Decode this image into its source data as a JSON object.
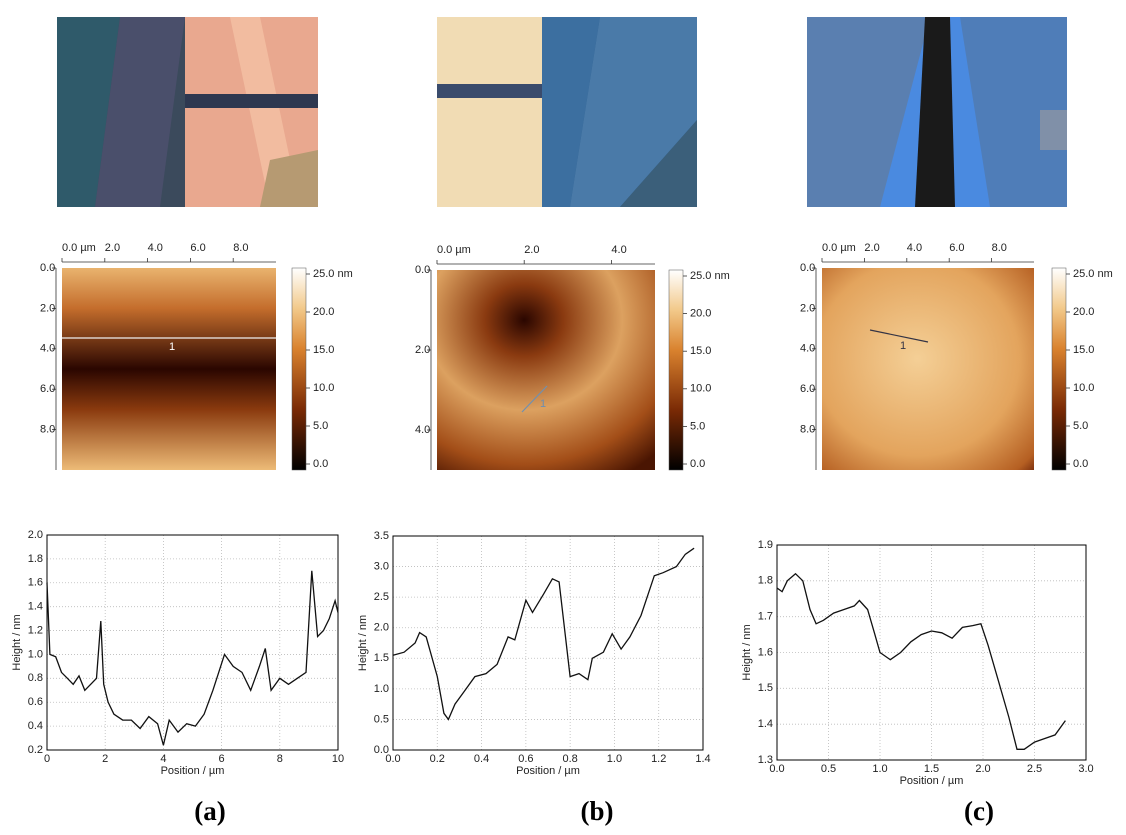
{
  "chart_data": [
    {
      "type": "line",
      "x_label": "Position / µm",
      "y_label": "Height / nm",
      "grid": true,
      "color": "#111",
      "x": [
        0,
        0.1,
        0.3,
        0.5,
        0.7,
        0.9,
        1.1,
        1.3,
        1.5,
        1.7,
        1.85,
        1.95,
        2.1,
        2.3,
        2.6,
        2.9,
        3.2,
        3.5,
        3.8,
        4.0,
        4.2,
        4.5,
        4.8,
        5.1,
        5.4,
        5.7,
        5.9,
        6.1,
        6.4,
        6.7,
        7.0,
        7.3,
        7.5,
        7.7,
        8.0,
        8.3,
        8.6,
        8.9,
        9.1,
        9.3,
        9.5,
        9.7,
        9.9,
        10
      ],
      "values": [
        1.6,
        1.0,
        0.98,
        0.85,
        0.8,
        0.75,
        0.82,
        0.7,
        0.75,
        0.8,
        1.28,
        0.75,
        0.6,
        0.5,
        0.45,
        0.45,
        0.38,
        0.48,
        0.42,
        0.24,
        0.45,
        0.35,
        0.42,
        0.4,
        0.5,
        0.7,
        0.85,
        1.0,
        0.9,
        0.85,
        0.7,
        0.9,
        1.05,
        0.7,
        0.8,
        0.75,
        0.8,
        0.85,
        1.7,
        1.15,
        1.2,
        1.3,
        1.45,
        1.35
      ],
      "xlim": [
        0,
        10
      ],
      "xticks": [
        0,
        2,
        4,
        6,
        8,
        10
      ],
      "ylim": [
        0.2,
        2.0
      ],
      "yticks": [
        0.2,
        0.4,
        0.6,
        0.8,
        {
          "value": 1.0,
          "label": "1.0"
        },
        1.2,
        1.4,
        1.6,
        1.8,
        {
          "value": 2.0,
          "label": "2.0"
        }
      ]
    },
    {
      "type": "line",
      "x_label": "Position / µm",
      "y_label": "Height / nm",
      "grid": true,
      "color": "#111",
      "x": [
        0,
        0.05,
        0.1,
        0.12,
        0.15,
        0.2,
        0.23,
        0.25,
        0.28,
        0.32,
        0.37,
        0.42,
        0.47,
        0.52,
        0.55,
        0.6,
        0.63,
        0.68,
        0.72,
        0.75,
        0.8,
        0.84,
        0.88,
        0.9,
        0.95,
        0.99,
        1.03,
        1.07,
        1.12,
        1.18,
        1.22,
        1.28,
        1.32,
        1.36
      ],
      "values": [
        1.55,
        1.6,
        1.75,
        1.92,
        1.85,
        1.2,
        0.6,
        0.5,
        0.75,
        0.95,
        1.2,
        1.25,
        1.4,
        1.85,
        1.8,
        2.45,
        2.25,
        2.55,
        2.8,
        2.75,
        1.2,
        1.25,
        1.15,
        1.5,
        1.6,
        1.9,
        1.65,
        1.85,
        2.2,
        2.85,
        2.9,
        3.0,
        3.2,
        3.3
      ],
      "xlim": [
        0,
        1.4
      ],
      "xticks": [
        {
          "value": 0,
          "label": "0.0"
        },
        0.2,
        0.4,
        0.6,
        0.8,
        {
          "value": 1,
          "label": "1.0"
        },
        1.2,
        1.4
      ],
      "ylim": [
        0,
        3.5
      ],
      "yticks": [
        {
          "value": 0,
          "label": "0.0"
        },
        0.5,
        {
          "value": 1,
          "label": "1.0"
        },
        1.5,
        {
          "value": 2,
          "label": "2.0"
        },
        2.5,
        {
          "value": 3,
          "label": "3.0"
        },
        3.5
      ]
    },
    {
      "type": "line",
      "x_label": "Position / µm",
      "y_label": "Height / nm",
      "grid": true,
      "color": "#111",
      "x": [
        0,
        0.05,
        0.1,
        0.18,
        0.25,
        0.32,
        0.38,
        0.45,
        0.55,
        0.65,
        0.75,
        0.8,
        0.88,
        0.95,
        1.0,
        1.1,
        1.2,
        1.3,
        1.4,
        1.5,
        1.6,
        1.7,
        1.8,
        1.9,
        1.98,
        2.05,
        2.15,
        2.25,
        2.33,
        2.4,
        2.5,
        2.6,
        2.7,
        2.8
      ],
      "values": [
        1.78,
        1.77,
        1.8,
        1.82,
        1.8,
        1.72,
        1.68,
        1.69,
        1.71,
        1.72,
        1.73,
        1.745,
        1.72,
        1.65,
        1.6,
        1.58,
        1.6,
        1.63,
        1.65,
        1.66,
        1.655,
        1.64,
        1.67,
        1.675,
        1.68,
        1.62,
        1.52,
        1.42,
        1.33,
        1.33,
        1.35,
        1.36,
        1.37,
        1.41
      ],
      "xlim": [
        0,
        3
      ],
      "xticks": [
        {
          "value": 0,
          "label": "0.0"
        },
        0.5,
        {
          "value": 1,
          "label": "1.0"
        },
        1.5,
        {
          "value": 2,
          "label": "2.0"
        },
        2.5,
        {
          "value": 3,
          "label": "3.0"
        }
      ],
      "ylim": [
        1.3,
        1.9
      ],
      "yticks": [
        1.3,
        1.4,
        1.5,
        1.6,
        1.7,
        1.8,
        1.9
      ]
    }
  ],
  "afm": [
    {
      "xlim": [
        0,
        10
      ],
      "ylim": [
        0,
        10
      ],
      "xticks": [
        {
          "value": 0,
          "label": "0.0 µm"
        },
        {
          "value": 2,
          "label": "2.0"
        },
        {
          "value": 4,
          "label": "4.0"
        },
        {
          "value": 6,
          "label": "6.0"
        },
        {
          "value": 8,
          "label": "8.0"
        }
      ],
      "yticks": [
        {
          "value": 0,
          "label": "0.0"
        },
        {
          "value": 2,
          "label": "2.0"
        },
        {
          "value": 4,
          "label": "4.0"
        },
        {
          "value": 6,
          "label": "6.0"
        },
        {
          "value": 8,
          "label": "8.0"
        }
      ],
      "colorbar_lim": [
        0,
        25
      ],
      "colorbar_ticks": [
        {
          "value": 0,
          "label": "0.0"
        },
        {
          "value": 5,
          "label": "5.0"
        },
        {
          "value": 10,
          "label": "10.0"
        },
        {
          "value": 15,
          "label": "15.0"
        },
        {
          "value": 20,
          "label": "20.0"
        },
        {
          "value": 25,
          "label": "25.0 nm"
        }
      ],
      "profile_label": "1"
    },
    {
      "xlim": [
        0,
        5
      ],
      "ylim": [
        0,
        5
      ],
      "xticks": [
        {
          "value": 0,
          "label": "0.0 µm"
        },
        {
          "value": 2,
          "label": "2.0"
        },
        {
          "value": 4,
          "label": "4.0"
        }
      ],
      "yticks": [
        {
          "value": 0,
          "label": "0.0"
        },
        {
          "value": 2,
          "label": "2.0"
        },
        {
          "value": 4,
          "label": "4.0"
        }
      ],
      "colorbar_lim": [
        0,
        25
      ],
      "colorbar_ticks": [
        {
          "value": 0,
          "label": "0.0"
        },
        {
          "value": 5,
          "label": "5.0"
        },
        {
          "value": 10,
          "label": "10.0"
        },
        {
          "value": 15,
          "label": "15.0"
        },
        {
          "value": 20,
          "label": "20.0"
        },
        {
          "value": 25,
          "label": "25.0 nm"
        }
      ],
      "profile_label": "1"
    },
    {
      "xlim": [
        0,
        10
      ],
      "ylim": [
        0,
        10
      ],
      "xticks": [
        {
          "value": 0,
          "label": "0.0 µm"
        },
        {
          "value": 2,
          "label": "2.0"
        },
        {
          "value": 4,
          "label": "4.0"
        },
        {
          "value": 6,
          "label": "6.0"
        },
        {
          "value": 8,
          "label": "8.0"
        }
      ],
      "yticks": [
        {
          "value": 0,
          "label": "0.0"
        },
        {
          "value": 2,
          "label": "2.0"
        },
        {
          "value": 4,
          "label": "4.0"
        },
        {
          "value": 6,
          "label": "6.0"
        },
        {
          "value": 8,
          "label": "8.0"
        }
      ],
      "colorbar_lim": [
        0,
        25
      ],
      "colorbar_ticks": [
        {
          "value": 0,
          "label": "0.0"
        },
        {
          "value": 5,
          "label": "5.0"
        },
        {
          "value": 10,
          "label": "10.0"
        },
        {
          "value": 15,
          "label": "15.0"
        },
        {
          "value": 20,
          "label": "20.0"
        },
        {
          "value": 25,
          "label": "25.0 nm"
        }
      ],
      "profile_label": "1"
    }
  ],
  "panel_labels": [
    "(a)",
    "(b)",
    "(c)"
  ]
}
